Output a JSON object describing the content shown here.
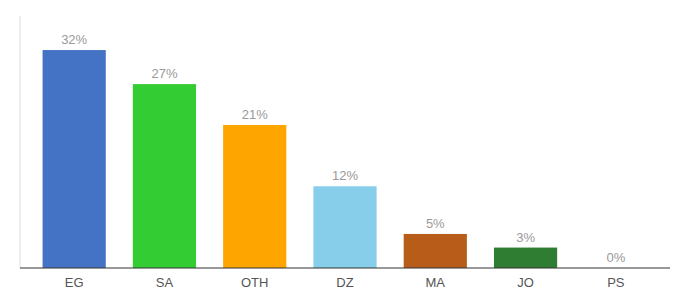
{
  "chart_data": {
    "type": "bar",
    "categories": [
      "EG",
      "SA",
      "OTH",
      "DZ",
      "MA",
      "JO",
      "PS"
    ],
    "values": [
      32,
      27,
      21,
      12,
      5,
      3,
      0
    ],
    "value_labels": [
      "32%",
      "27%",
      "21%",
      "12%",
      "5%",
      "3%",
      "0%"
    ],
    "colors": [
      "#4472C4",
      "#33CC33",
      "#FFA500",
      "#87CEEB",
      "#B85C1A",
      "#2E7D32",
      "#4CAF50"
    ],
    "ylim": [
      0,
      37
    ],
    "data_labels": true,
    "tick_labels": "x",
    "grid": false
  }
}
